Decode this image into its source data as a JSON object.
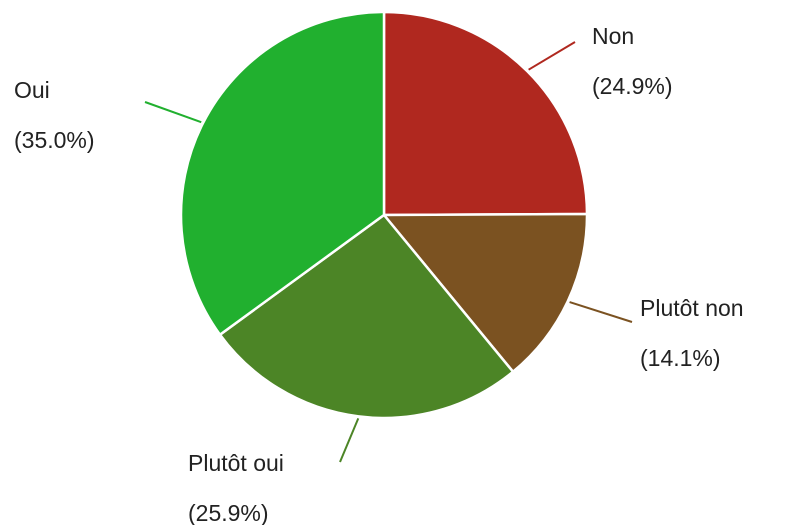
{
  "chart_data": {
    "type": "pie",
    "categories": [
      "Non",
      "Plutôt non",
      "Plutôt oui",
      "Oui"
    ],
    "values": [
      24.9,
      14.1,
      25.9,
      35.0
    ],
    "value_labels": [
      "(24.9%)",
      "(14.1%)",
      "(25.9%)",
      "(35.0%)"
    ],
    "colors": [
      "#b0281f",
      "#7b5221",
      "#4c8526",
      "#21b02f"
    ]
  }
}
